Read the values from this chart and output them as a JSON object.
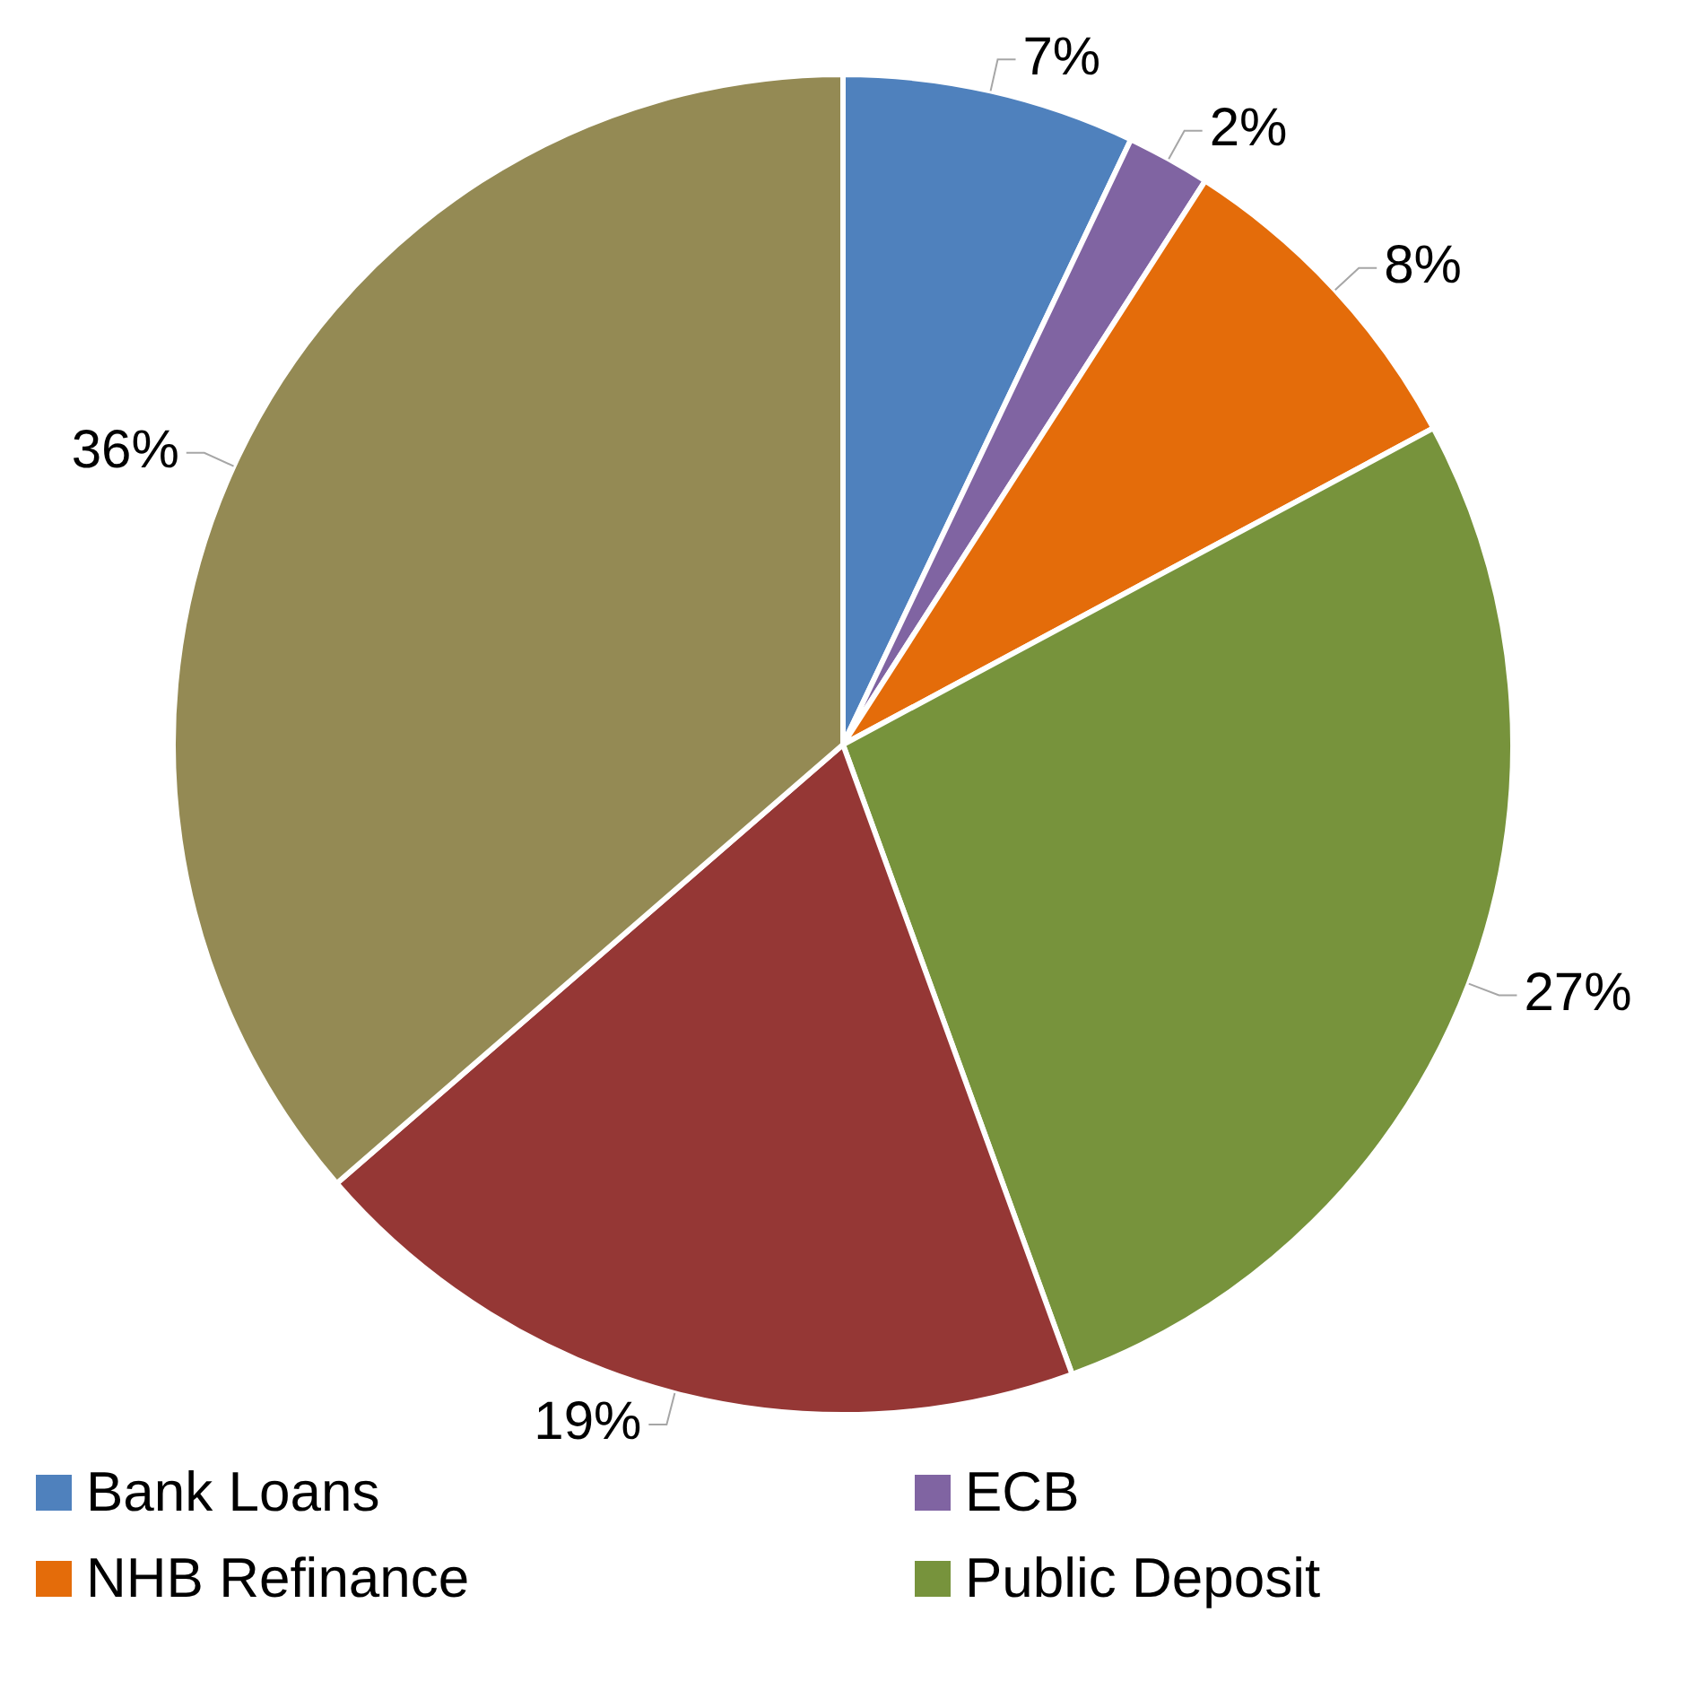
{
  "chart_data": {
    "type": "pie",
    "categories": [
      "Bank  Loans",
      "ECB",
      "NHB Refinance",
      "Public Deposit",
      null,
      null
    ],
    "values": [
      7,
      2,
      8,
      27,
      19,
      36
    ],
    "value_labels": [
      "7%",
      "2%",
      "8%",
      "27%",
      "19%",
      "36%"
    ],
    "colors": [
      "#4f81bd",
      "#8064a2",
      "#e46c0a",
      "#77933c",
      "#953735",
      "#948a54"
    ],
    "legend": "bottom"
  }
}
